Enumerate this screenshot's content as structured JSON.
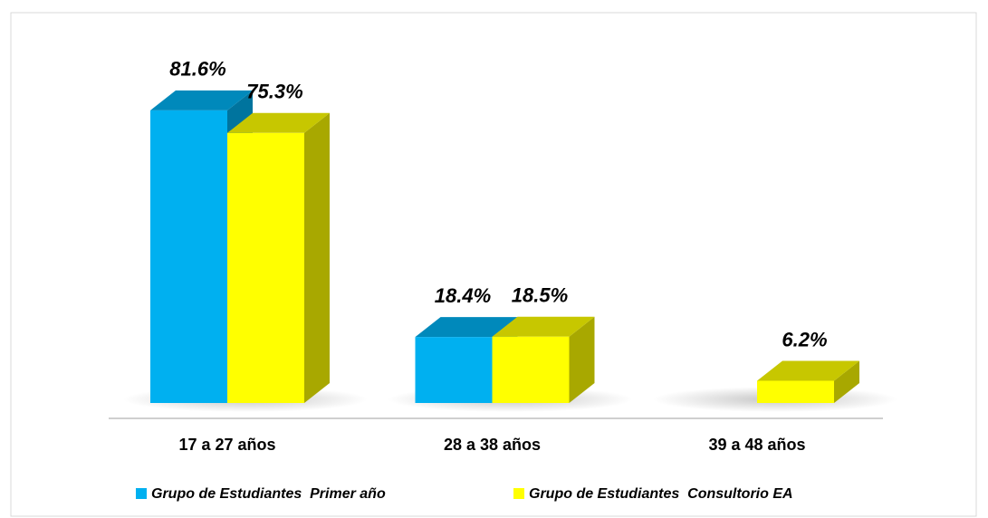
{
  "chart_data": {
    "type": "bar3d",
    "categories": [
      "17 a 27 años",
      "28 a 38 años",
      "39 a 48 años"
    ],
    "series": [
      {
        "name": "Grupo de Estudiantes  Primer año",
        "color": "#00b0f0",
        "values": [
          81.6,
          18.4,
          null
        ],
        "value_labels": [
          "81.6%",
          "18.4%",
          null
        ]
      },
      {
        "name": "Grupo de Estudiantes  Consultorio EA",
        "color": "#ffff00",
        "values": [
          75.3,
          18.5,
          6.2
        ],
        "value_labels": [
          "75.3%",
          "18.5%",
          "6.2%"
        ]
      }
    ],
    "ylim": [
      0,
      100
    ],
    "legend": "bottom"
  }
}
